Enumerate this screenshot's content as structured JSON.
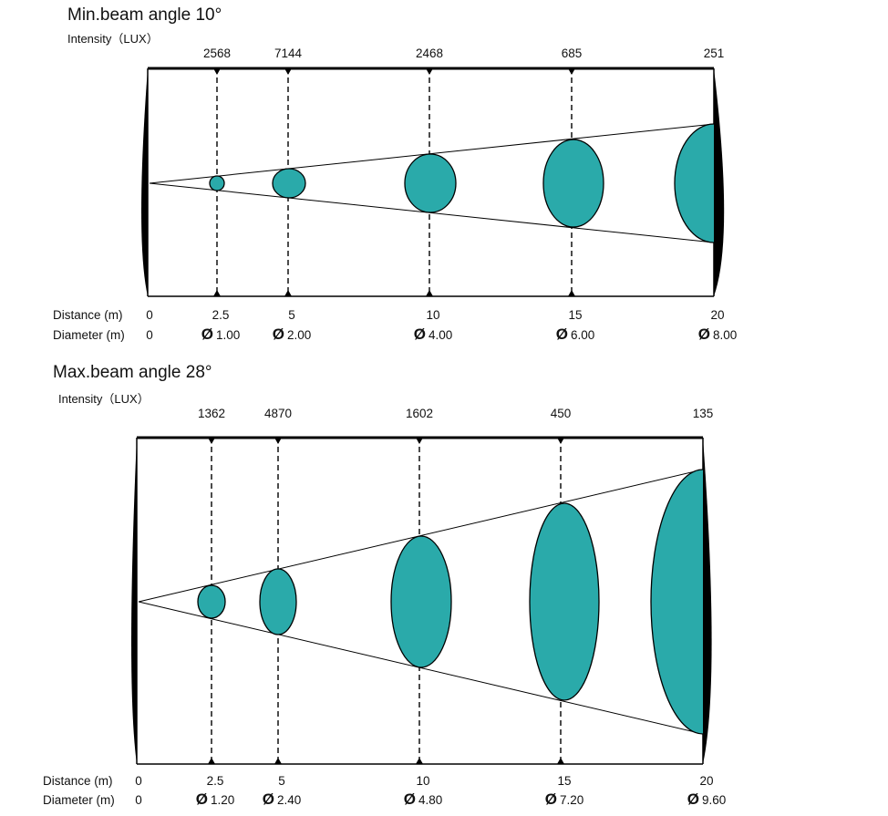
{
  "colors": {
    "beam_spot": "#2aaaaa",
    "line": "#000000"
  },
  "panels": [
    {
      "title": "Min.beam angle  10°",
      "intensity_label": "Intensity（LUX）",
      "distance_label": "Distance (m)",
      "diameter_label": "Diameter (m)",
      "origin_distance": "0",
      "origin_diameter": "0",
      "beam_angle_deg": 10,
      "points": [
        {
          "distance": "2.5",
          "diameter": "1.00",
          "lux": "2568"
        },
        {
          "distance": "5",
          "diameter": "2.00",
          "lux": "7144"
        },
        {
          "distance": "10",
          "diameter": "4.00",
          "lux": "2468"
        },
        {
          "distance": "15",
          "diameter": "6.00",
          "lux": "685"
        },
        {
          "distance": "20",
          "diameter": "8.00",
          "lux": "251"
        }
      ]
    },
    {
      "title": "Max.beam angle  28°",
      "intensity_label": "Intensity（LUX）",
      "distance_label": "Distance (m)",
      "diameter_label": "Diameter (m)",
      "origin_distance": "0",
      "origin_diameter": "0",
      "beam_angle_deg": 28,
      "points": [
        {
          "distance": "2.5",
          "diameter": "1.20",
          "lux": "1362"
        },
        {
          "distance": "5",
          "diameter": "2.40",
          "lux": "4870"
        },
        {
          "distance": "10",
          "diameter": "4.80",
          "lux": "1602"
        },
        {
          "distance": "15",
          "diameter": "7.20",
          "lux": "450"
        },
        {
          "distance": "20",
          "diameter": "9.60",
          "lux": "135"
        }
      ]
    }
  ],
  "diameter_symbol": "Ø"
}
